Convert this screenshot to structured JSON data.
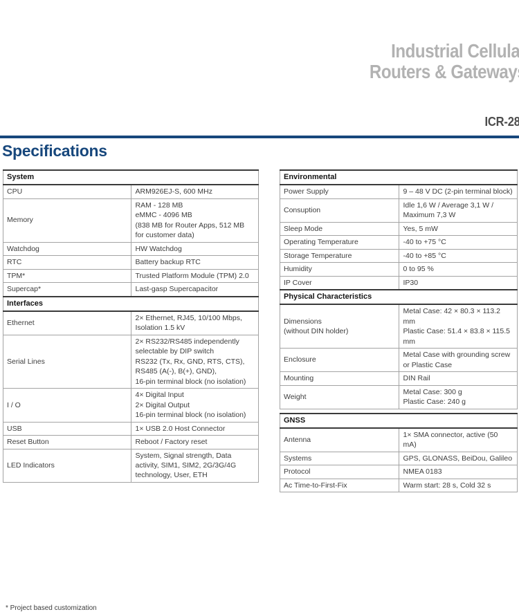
{
  "header": {
    "title_line1": "Industrial Cellular",
    "title_line2": "Routers & Gateways",
    "model": "ICR-28",
    "accent_color": "#17477c",
    "title_color": "#b2b2b2",
    "model_color": "#4d4d4d"
  },
  "page_title": "Specifications",
  "footnote": "* Project based customization",
  "tables": {
    "system_interfaces": {
      "sections": [
        {
          "title": "System",
          "rows": [
            {
              "label": "CPU",
              "value": "ARM926EJ-S, 600 MHz"
            },
            {
              "label": "Memory",
              "value": "RAM - 128 MB\neMMC - 4096 MB\n(838 MB for Router Apps, 512 MB for customer data)"
            },
            {
              "label": "Watchdog",
              "value": "HW Watchdog"
            },
            {
              "label": "RTC",
              "value": "Battery backup RTC"
            },
            {
              "label": "TPM*",
              "value": "Trusted Platform Module (TPM) 2.0"
            },
            {
              "label": "Supercap*",
              "value": "Last-gasp Supercapacitor"
            }
          ]
        },
        {
          "title": "Interfaces",
          "rows": [
            {
              "label": "Ethernet",
              "value": "2× Ethernet, RJ45, 10/100 Mbps, Isolation 1.5 kV"
            },
            {
              "label": "Serial Lines",
              "value": "2× RS232/RS485 independently selectable by DIP switch\nRS232 (Tx, Rx, GND, RTS, CTS),\nRS485 (A(-), B(+), GND),\n16-pin terminal block (no isolation)"
            },
            {
              "label": "I / O",
              "value": "4× Digital Input\n2× Digital Output\n16-pin terminal block (no isolation)"
            },
            {
              "label": "USB",
              "value": "1× USB 2.0 Host Connector"
            },
            {
              "label": "Reset Button",
              "value": "Reboot / Factory reset"
            },
            {
              "label": "LED Indicators",
              "value": "System, Signal strength, Data activity, SIM1, SIM2, 2G/3G/4G\ntechnology, User, ETH"
            }
          ]
        }
      ]
    },
    "environmental_physical": {
      "sections": [
        {
          "title": "Environmental",
          "rows": [
            {
              "label": "Power Supply",
              "value": "9 – 48 V DC (2-pin terminal block)"
            },
            {
              "label": "Consuption",
              "value": "Idle 1,6 W / Average 3,1 W / Maximum 7,3 W"
            },
            {
              "label": "Sleep Mode",
              "value": "Yes, 5 mW"
            },
            {
              "label": "Operating Temperature",
              "value": "-40 to +75 °C"
            },
            {
              "label": "Storage Temperature",
              "value": "-40 to +85 °C"
            },
            {
              "label": "Humidity",
              "value": "0 to 95 %"
            },
            {
              "label": "IP Cover",
              "value": "IP30"
            }
          ]
        },
        {
          "title": "Physical Characteristics",
          "rows": [
            {
              "label": "Dimensions\n(without DIN holder)",
              "value": "Metal Case: 42 × 80.3 × 113.2 mm\nPlastic Case: 51.4 × 83.8 × 115.5 mm"
            },
            {
              "label": "Enclosure",
              "value": "Metal Case with grounding screw\nor Plastic Case"
            },
            {
              "label": "Mounting",
              "value": "DIN Rail"
            },
            {
              "label": "Weight",
              "value": "Metal Case: 300 g\nPlastic Case: 240 g"
            }
          ]
        }
      ]
    },
    "gnss": {
      "sections": [
        {
          "title": "GNSS",
          "rows": [
            {
              "label": "Antenna",
              "value": "1× SMA connector, active (50 mA)"
            },
            {
              "label": "Systems",
              "value": "GPS, GLONASS, BeiDou, Galileo"
            },
            {
              "label": "Protocol",
              "value": "NMEA 0183"
            },
            {
              "label": "Ac Time-to-First-Fix",
              "value": "Warm start: 28 s, Cold 32 s"
            }
          ]
        }
      ]
    }
  }
}
